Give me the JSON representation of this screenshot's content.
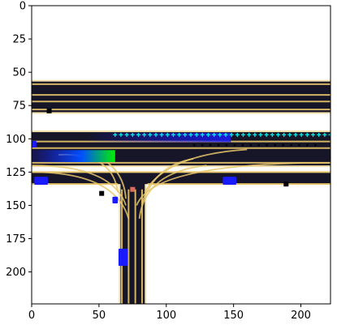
{
  "chart_data": {
    "type": "heatmap",
    "title": "",
    "xlabel": "",
    "ylabel": "",
    "xlim": [
      0,
      222
    ],
    "ylim": [
      224,
      0
    ],
    "x_ticks": [
      0,
      50,
      100,
      150,
      200
    ],
    "y_ticks": [
      0,
      25,
      50,
      75,
      100,
      125,
      150,
      175,
      200
    ],
    "colors": {
      "road": "#161628",
      "lane_line": "#e8c66a",
      "agent_box": "#1a1aff",
      "history_trail_start": "#0000ff",
      "history_trail_end": "#00ee00",
      "future_marker": "#00e5e5",
      "other_marker": "#000000",
      "ego_marker": "#ff7a60",
      "axes": "#000000"
    },
    "roads": [
      {
        "name": "upper-road",
        "x": [
          0,
          222
        ],
        "y": [
          57,
          80
        ]
      },
      {
        "name": "middle-road",
        "x": [
          0,
          222
        ],
        "y": [
          95,
          120
        ]
      },
      {
        "name": "vertical-road",
        "x": [
          66,
          84
        ],
        "y": [
          132,
          224
        ]
      }
    ],
    "agents": [
      {
        "x": 7,
        "y": 131.5,
        "w": 10,
        "h": 6
      },
      {
        "x": 147,
        "y": 131.5,
        "w": 10,
        "h": 6
      },
      {
        "x": 68,
        "y": 189,
        "w": 7,
        "h": 13
      },
      {
        "x": 62,
        "y": 146,
        "w": 4,
        "h": 5
      },
      {
        "x": 1,
        "y": 104,
        "w": 5,
        "h": 5
      }
    ],
    "trail": {
      "x0": 0,
      "x1": 62,
      "y": 113,
      "h": 9
    },
    "trail2": {
      "x0": 40,
      "x1": 148,
      "y": 99,
      "h": 7
    },
    "future_points_x_start": 62,
    "future_points_x_end": 222,
    "future_points_y": 97,
    "future_points_count": 38,
    "other_markers": [
      {
        "x": 189,
        "y": 134
      },
      {
        "x": 52,
        "y": 141
      },
      {
        "x": 13,
        "y": 79
      }
    ],
    "ego_marker": {
      "x": 75,
      "y": 138
    }
  }
}
